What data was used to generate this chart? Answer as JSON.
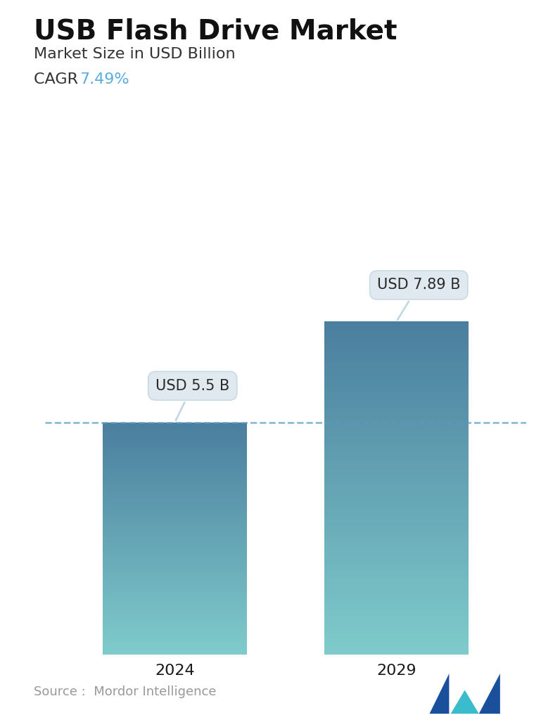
{
  "title": "USB Flash Drive Market",
  "subtitle": "Market Size in USD Billion",
  "cagr_label": "CAGR ",
  "cagr_value": "7.49%",
  "cagr_color": "#5aace1",
  "categories": [
    "2024",
    "2029"
  ],
  "values": [
    5.5,
    7.89
  ],
  "labels": [
    "USD 5.5 B",
    "USD 7.89 B"
  ],
  "bar_color_top": "#4a7e9e",
  "bar_color_bottom": "#7fcbcb",
  "dashed_line_y": 5.5,
  "dashed_line_color": "#5a9abe",
  "source_text": "Source :  Mordor Intelligence",
  "background_color": "#ffffff",
  "title_fontsize": 28,
  "subtitle_fontsize": 16,
  "cagr_fontsize": 16,
  "label_fontsize": 15,
  "tick_fontsize": 16,
  "source_fontsize": 13,
  "ylim": [
    0,
    10.0
  ],
  "bar_positions": [
    0.27,
    0.73
  ],
  "bar_width": 0.3
}
